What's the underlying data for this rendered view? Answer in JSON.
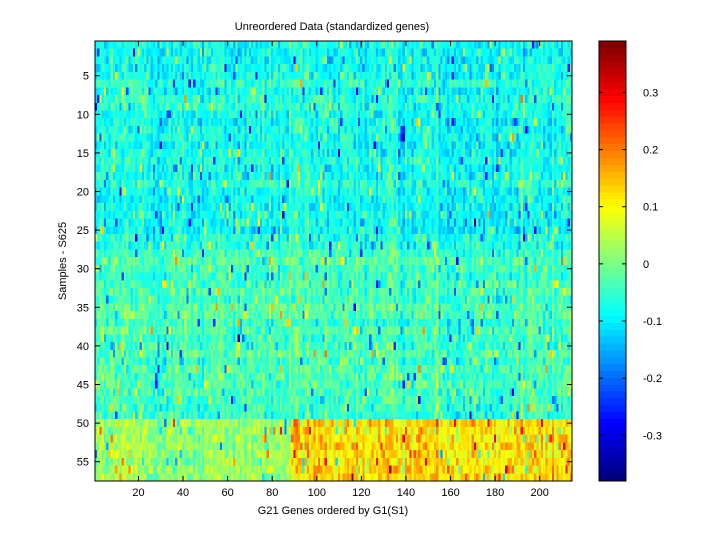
{
  "chart_data": {
    "type": "heatmap",
    "title": "Unreordered Data (standardized genes)",
    "xlabel": "G21 Genes ordered by G1(S1)",
    "ylabel": "Samples - S625",
    "n_rows": 57,
    "n_cols": 214,
    "x_ticks": [
      20,
      40,
      60,
      80,
      100,
      120,
      140,
      160,
      180,
      200
    ],
    "y_ticks": [
      5,
      10,
      15,
      20,
      25,
      30,
      35,
      40,
      45,
      50,
      55
    ],
    "colorbar": {
      "colormap": "jet",
      "range": [
        -0.38,
        0.39
      ],
      "ticks": [
        -0.3,
        -0.2,
        -0.1,
        0,
        0.1,
        0.2,
        0.3
      ],
      "tick_labels": [
        "-0.3",
        "-0.2",
        "-0.1",
        "0",
        "0.1",
        "0.2",
        "0.3"
      ]
    },
    "row_bias": {
      "rows_1_to_27": -0.08,
      "rows_28_to_49": -0.04,
      "rows_50_to_57": 0.02
    },
    "hot_block": {
      "rows": [
        50,
        57
      ],
      "cols": [
        89,
        214
      ],
      "mean_value": 0.14
    },
    "grid": false,
    "legend": "colorbar-right"
  }
}
